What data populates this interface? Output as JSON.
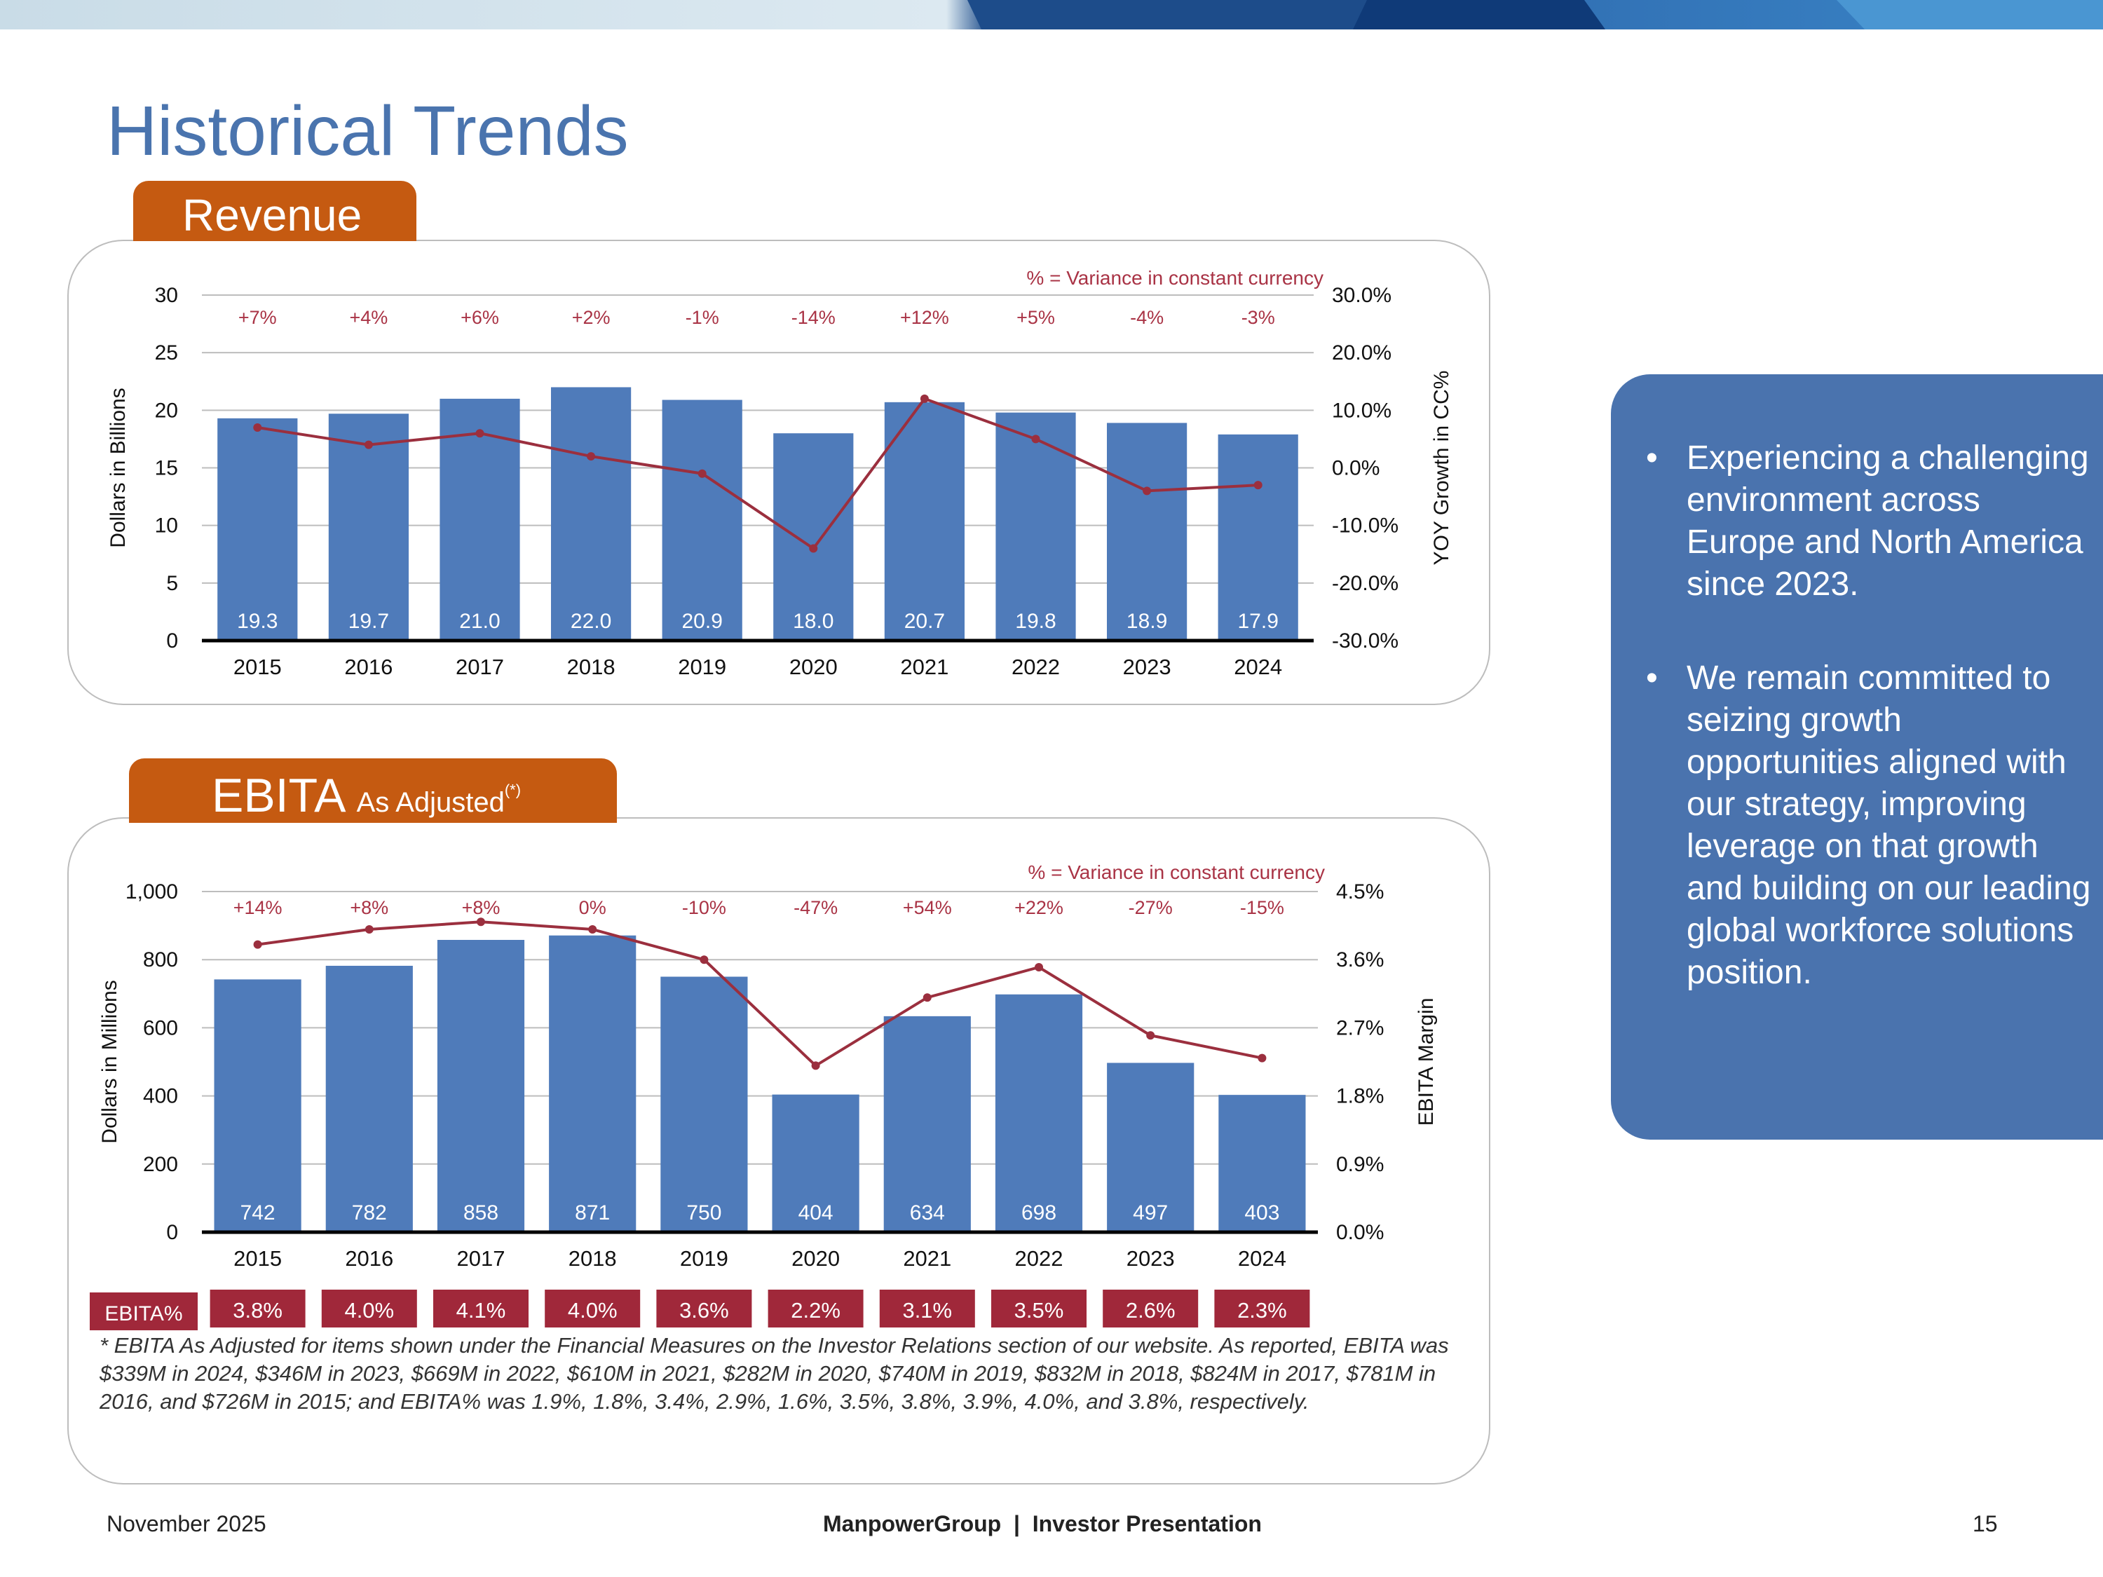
{
  "page": {
    "title": "Historical Trends",
    "footer_date": "November 2025",
    "footer_center": "ManpowerGroup  |  Investor Presentation",
    "page_number": "15"
  },
  "colors": {
    "title": "#4A74AE",
    "bar": "#4F7BBA",
    "line": "#9B2F3E",
    "variance_text": "#A93345",
    "tab": "#C55A11",
    "sidebar": "#4A73AE",
    "margin_badge": "#A0283A"
  },
  "revenue_tab": {
    "label": "Revenue"
  },
  "ebita_tab": {
    "label_main": "EBITA",
    "label_sub": "As Adjusted",
    "label_sup": "(*)"
  },
  "chart_data": [
    {
      "type": "bar",
      "id": "revenue",
      "title": "Revenue",
      "note": "% = Variance in constant currency",
      "categories": [
        "2015",
        "2016",
        "2017",
        "2018",
        "2019",
        "2020",
        "2021",
        "2022",
        "2023",
        "2024"
      ],
      "series": [
        {
          "name": "Revenue",
          "type": "bar",
          "axis": "left",
          "values": [
            19.3,
            19.7,
            21.0,
            22.0,
            20.9,
            18.0,
            20.7,
            19.8,
            18.9,
            17.9
          ],
          "labels": [
            "19.3",
            "19.7",
            "21.0",
            "22.0",
            "20.9",
            "18.0",
            "20.7",
            "19.8",
            "18.9",
            "17.9"
          ]
        },
        {
          "name": "YOY Growth in CC%",
          "type": "line",
          "axis": "right",
          "values": [
            7,
            4,
            6,
            2,
            -1,
            -14,
            12,
            5,
            -4,
            -3
          ]
        }
      ],
      "variance_labels": [
        "+7%",
        "+4%",
        "+6%",
        "+2%",
        "-1%",
        "-14%",
        "+12%",
        "+5%",
        "-4%",
        "-3%"
      ],
      "ylabel": "Dollars in Billions",
      "y2label": "YOY Growth in CC%",
      "ylim": [
        0,
        30
      ],
      "y2lim": [
        -30,
        30
      ],
      "yticks": [
        "0",
        "5",
        "10",
        "15",
        "20",
        "25",
        "30"
      ],
      "y2ticks": [
        "-30.0%",
        "-20.0%",
        "-10.0%",
        "0.0%",
        "10.0%",
        "20.0%",
        "30.0%"
      ]
    },
    {
      "type": "bar",
      "id": "ebita",
      "title": "EBITA As Adjusted(*)",
      "note": "% = Variance in constant currency",
      "categories": [
        "2015",
        "2016",
        "2017",
        "2018",
        "2019",
        "2020",
        "2021",
        "2022",
        "2023",
        "2024"
      ],
      "series": [
        {
          "name": "EBITA",
          "type": "bar",
          "axis": "left",
          "values": [
            742,
            782,
            858,
            871,
            750,
            404,
            634,
            698,
            497,
            403
          ],
          "labels": [
            "742",
            "782",
            "858",
            "871",
            "750",
            "404",
            "634",
            "698",
            "497",
            "403"
          ]
        },
        {
          "name": "EBITA Margin",
          "type": "line",
          "axis": "right",
          "values": [
            3.8,
            4.0,
            4.1,
            4.0,
            3.6,
            2.2,
            3.1,
            3.5,
            2.6,
            2.3
          ]
        }
      ],
      "variance_labels": [
        "+14%",
        "+8%",
        "+8%",
        "0%",
        "-10%",
        "-47%",
        "+54%",
        "+22%",
        "-27%",
        "-15%"
      ],
      "ylabel": "Dollars in Millions",
      "y2label": "EBITA Margin",
      "ylim": [
        0,
        1000
      ],
      "y2lim": [
        0,
        4.5
      ],
      "yticks": [
        "0",
        "200",
        "400",
        "600",
        "800",
        "1,000"
      ],
      "y2ticks": [
        "0.0%",
        "0.9%",
        "1.8%",
        "2.7%",
        "3.6%",
        "4.5%"
      ],
      "margin_row_label": "EBITA%",
      "margin_labels": [
        "3.8%",
        "4.0%",
        "4.1%",
        "4.0%",
        "3.6%",
        "2.2%",
        "3.1%",
        "3.5%",
        "2.6%",
        "2.3%"
      ]
    }
  ],
  "footnote": "* EBITA As Adjusted for items shown under the Financial Measures on the Investor Relations section of our website.  As reported, EBITA was $339M in 2024, $346M in 2023, $669M in 2022, $610M in 2021, $282M in 2020, $740M in 2019, $832M in 2018, $824M in 2017, $781M in 2016, and $726M in 2015; and EBITA% was 1.9%, 1.8%, 3.4%, 2.9%, 1.6%, 3.5%, 3.8%, 3.9%, 4.0%, and 3.8%, respectively.",
  "sidebar": {
    "bullet_symbol": "•",
    "bullets": [
      "Experiencing a challenging environment across Europe and North America since 2023.",
      "We remain committed to seizing growth opportunities aligned with our strategy, improving leverage on that growth and building on our leading global workforce solutions position."
    ]
  }
}
